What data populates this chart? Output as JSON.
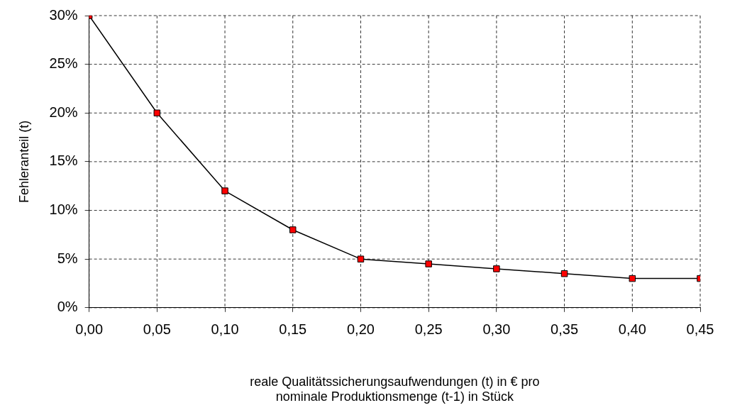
{
  "chart_data": {
    "type": "line",
    "xlabel": "reale Qualitätssicherungsaufwendungen (t) in € pro\nnominale Produktionsmenge (t-1) in Stück",
    "ylabel": "Fehleranteil (t)",
    "x": [
      0,
      0.05,
      0.1,
      0.15,
      0.2,
      0.25,
      0.3,
      0.35,
      0.4,
      0.45
    ],
    "series": [
      {
        "color": "#000000",
        "colors": [
          "#ff0000",
          "#ff0000",
          "#ff0000",
          "#ff0000",
          "#ff0000",
          "#ff0000",
          "#ff0000",
          "#ff0000",
          "#ff0000",
          "#ff0000"
        ],
        "values": [
          30,
          20,
          12,
          8,
          5,
          4.5,
          4,
          3.5,
          3,
          3
        ]
      }
    ],
    "xlim": [
      0,
      0.45
    ],
    "xticks": [
      {
        "value": 0,
        "label": "0,00"
      },
      {
        "value": 0.05,
        "label": "0,05"
      },
      {
        "value": 0.1,
        "label": "0,10"
      },
      {
        "value": 0.15,
        "label": "0,15"
      },
      {
        "value": 0.2,
        "label": "0,20"
      },
      {
        "value": 0.25,
        "label": "0,25"
      },
      {
        "value": 0.3,
        "label": "0,30"
      },
      {
        "value": 0.35,
        "label": "0,35"
      },
      {
        "value": 0.4,
        "label": "0,40"
      },
      {
        "value": 0.45,
        "label": "0,45"
      }
    ],
    "ylim": [
      0,
      30
    ],
    "yticks": [
      {
        "value": 0,
        "label": "0%"
      },
      {
        "value": 5,
        "label": "5%"
      },
      {
        "value": 10,
        "label": "10%"
      },
      {
        "value": 15,
        "label": "15%"
      },
      {
        "value": 20,
        "label": "20%"
      },
      {
        "value": 25,
        "label": "25%"
      },
      {
        "value": 30,
        "label": "30%"
      }
    ],
    "grid": true,
    "legend": false,
    "marker": "square",
    "line_style": "solid"
  }
}
